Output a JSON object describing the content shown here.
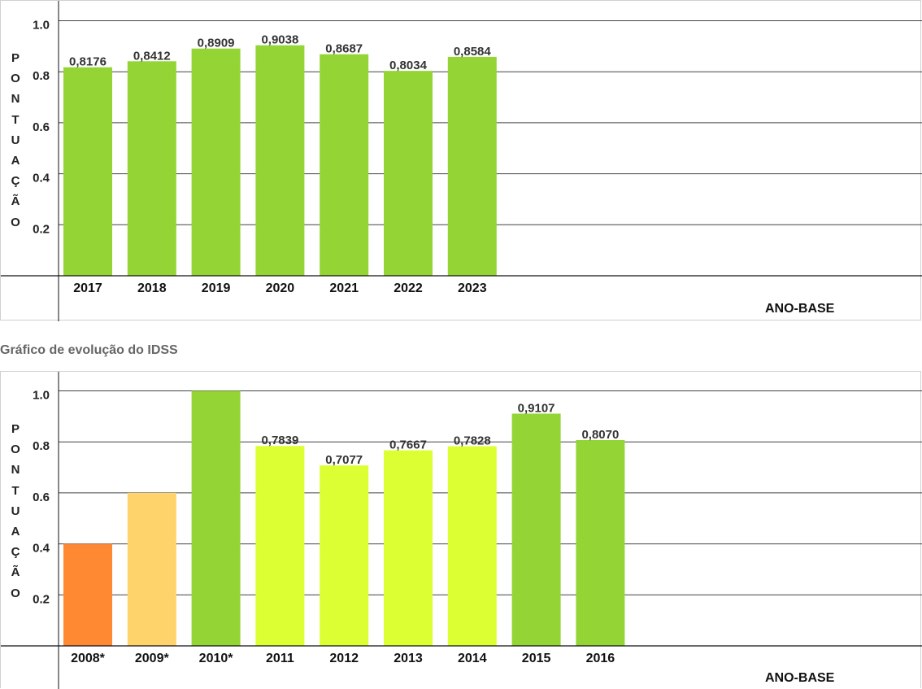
{
  "section_title": "Gráfico de evolução do IDSS",
  "chart_data": [
    {
      "type": "bar",
      "ylabel": "PONTUAÇÃO",
      "xlabel": "ANO-BASE",
      "ylim": [
        0,
        1.1
      ],
      "yticks": [
        "0.2",
        "0.4",
        "0.6",
        "0.8",
        "1.0"
      ],
      "categories": [
        "2017",
        "2018",
        "2019",
        "2020",
        "2021",
        "2022",
        "2023"
      ],
      "values": [
        0.8176,
        0.8412,
        0.8909,
        0.9038,
        0.8687,
        0.8034,
        0.8584
      ],
      "data_labels": [
        "0,8176",
        "0,8412",
        "0,8909",
        "0,9038",
        "0,8687",
        "0,8034",
        "0,8584"
      ],
      "colors": [
        "#94d535",
        "#94d535",
        "#94d535",
        "#94d535",
        "#94d535",
        "#94d535",
        "#94d535"
      ]
    },
    {
      "type": "bar",
      "ylabel": "PONTUAÇÃO",
      "xlabel": "ANO-BASE",
      "ylim": [
        0,
        1.1
      ],
      "yticks": [
        "0.2",
        "0.4",
        "0.6",
        "0.8",
        "1.0"
      ],
      "categories": [
        "2008*",
        "2009*",
        "2010*",
        "2011",
        "2012",
        "2013",
        "2014",
        "2015",
        "2016"
      ],
      "values": [
        0.4,
        0.6,
        1.0,
        0.7839,
        0.7077,
        0.7667,
        0.7828,
        0.9107,
        0.807
      ],
      "data_labels": [
        "",
        "",
        "",
        "0,7839",
        "0,7077",
        "0,7667",
        "0,7828",
        "0,9107",
        "0,8070"
      ],
      "colors": [
        "#ff8833",
        "#ffd36b",
        "#94d535",
        "#dcff33",
        "#dcff33",
        "#dcff33",
        "#dcff33",
        "#94d535",
        "#94d535"
      ]
    }
  ]
}
